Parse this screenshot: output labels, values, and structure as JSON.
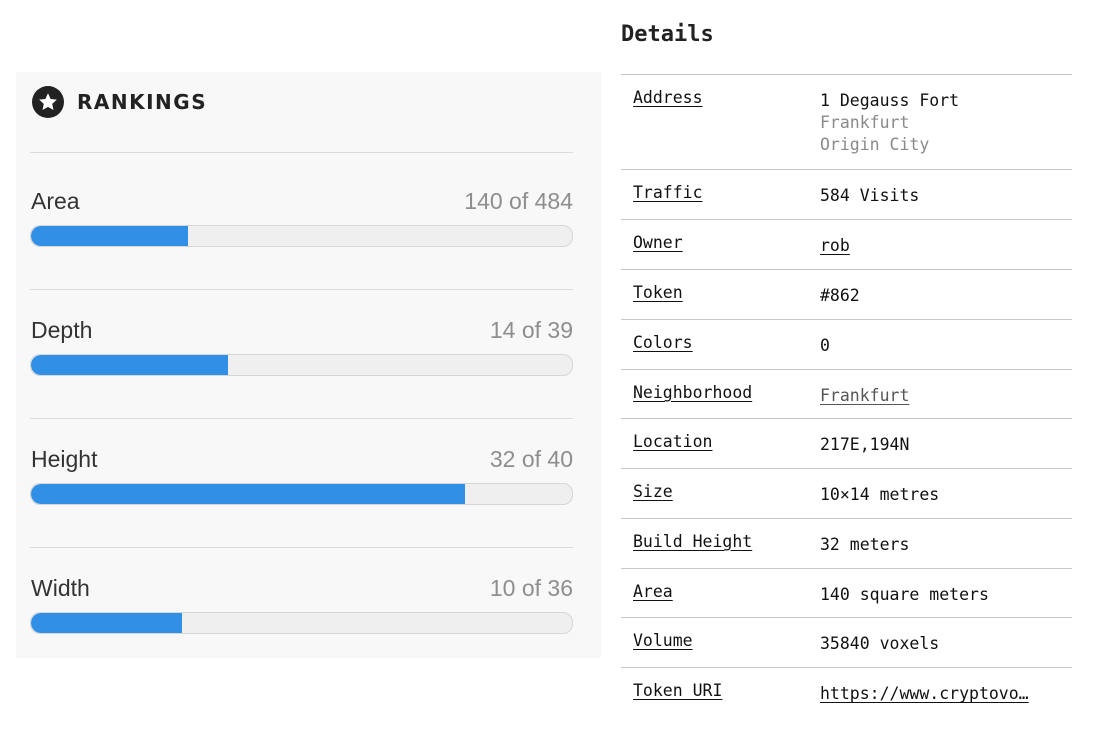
{
  "rankings": {
    "title": "RANKINGS",
    "icon": "star-icon",
    "bar_color": "#318fe6",
    "items": [
      {
        "label": "Area",
        "value_text": "140 of 484",
        "rank": 140,
        "total": 484,
        "fill_fraction": 0.29
      },
      {
        "label": "Depth",
        "value_text": "14 of 39",
        "rank": 14,
        "total": 39,
        "fill_fraction": 0.364
      },
      {
        "label": "Height",
        "value_text": "32 of 40",
        "rank": 32,
        "total": 40,
        "fill_fraction": 0.803
      },
      {
        "label": "Width",
        "value_text": "10 of 36",
        "rank": 10,
        "total": 36,
        "fill_fraction": 0.28
      }
    ]
  },
  "details": {
    "title": "Details",
    "address": {
      "key": "Address",
      "line1": "1 Degauss Fort",
      "line2": "Frankfurt",
      "line3": "Origin City"
    },
    "traffic": {
      "key": "Traffic",
      "value": "584 Visits"
    },
    "owner": {
      "key": "Owner",
      "value": "rob"
    },
    "token": {
      "key": "Token",
      "value": "#862"
    },
    "colors": {
      "key": "Colors",
      "value": "0"
    },
    "neighborhood": {
      "key": "Neighborhood",
      "value": "Frankfurt"
    },
    "location": {
      "key": "Location",
      "value": "217E,194N"
    },
    "size": {
      "key": "Size",
      "value": "10×14 metres"
    },
    "build_height": {
      "key": "Build Height",
      "value": "32 meters"
    },
    "area": {
      "key": "Area",
      "value": "140 square meters"
    },
    "volume": {
      "key": "Volume",
      "value": "35840 voxels"
    },
    "token_uri": {
      "key": "Token URI",
      "value": "https://www.cryptovo…"
    }
  }
}
